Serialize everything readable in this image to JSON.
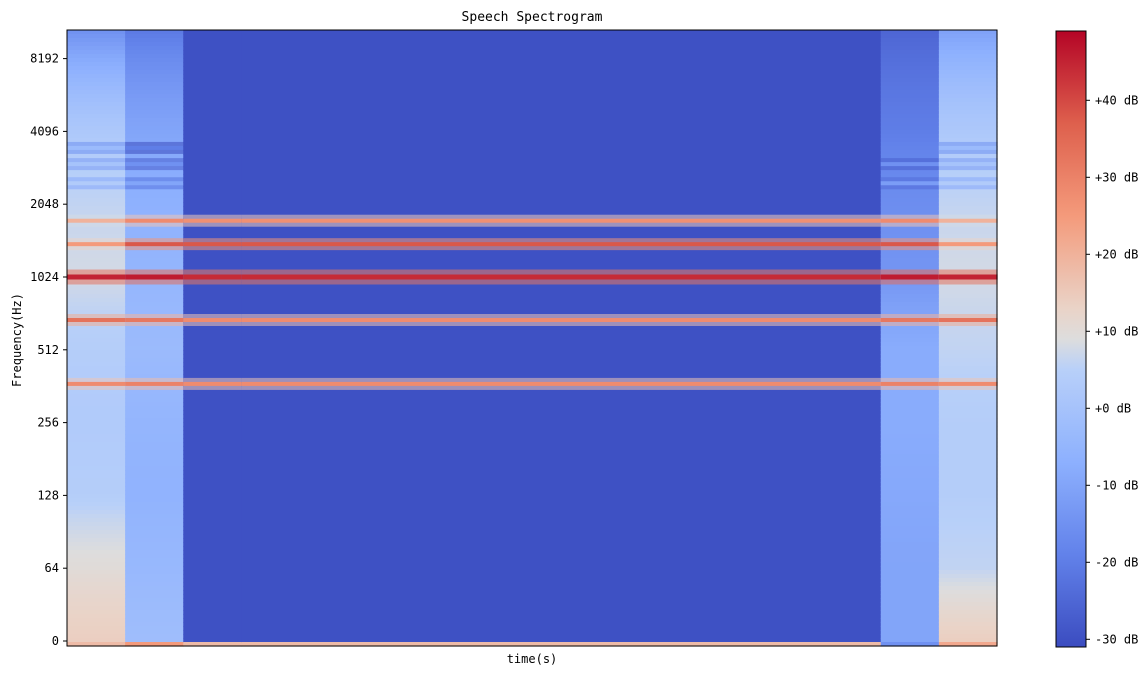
{
  "chart_data": {
    "type": "heatmap",
    "title": "Speech Spectrogram",
    "xlabel": "time(s)",
    "ylabel": "Frequency(Hz)",
    "y_scale": "log2 (symlog near 0)",
    "y_ticks": [
      "0",
      "64",
      "128",
      "256",
      "512",
      "1024",
      "2048",
      "4096",
      "8192"
    ],
    "colorbar": {
      "colormap": "coolwarm",
      "range_db": [
        -31,
        49
      ],
      "ticks": [
        -30,
        -20,
        -10,
        0,
        10,
        20,
        30,
        40
      ],
      "tick_labels": [
        "-30 dB",
        "-20 dB",
        "-10 dB",
        "+0 dB",
        "+10 dB",
        "+20 dB",
        "+30 dB",
        "+40 dB"
      ]
    },
    "frames": [
      {
        "floor_db": [
          18,
          14,
          10,
          4,
          3,
          4,
          8,
          2,
          -30
        ],
        "harmonics": [
          {
            "f": 370,
            "db": 28
          },
          {
            "f": 680,
            "db": 33
          },
          {
            "f": 1024,
            "db": 45
          },
          {
            "f": 1400,
            "db": 25
          },
          {
            "f": 1750,
            "db": 20
          },
          {
            "f": 2500,
            "db": 3
          },
          {
            "f": 3000,
            "db": 0
          },
          {
            "f": 3500,
            "db": -3
          }
        ]
      },
      {
        "floor_db": [
          25,
          -2,
          -4,
          -6,
          -5,
          -3,
          -5,
          -10,
          -30
        ],
        "harmonics": [
          {
            "f": 370,
            "db": 30
          },
          {
            "f": 680,
            "db": 32
          },
          {
            "f": 1024,
            "db": 46
          },
          {
            "f": 1400,
            "db": 38
          },
          {
            "f": 1750,
            "db": 28
          },
          {
            "f": 2500,
            "db": -10
          },
          {
            "f": 3000,
            "db": -15
          },
          {
            "f": 3500,
            "db": -20
          }
        ]
      },
      {
        "floor_db": [
          18,
          -30,
          -30,
          -30,
          -30,
          -30,
          -30,
          -30,
          -30
        ],
        "harmonics": [
          {
            "f": 370,
            "db": 28
          },
          {
            "f": 680,
            "db": 28
          },
          {
            "f": 1024,
            "db": 44
          },
          {
            "f": 1400,
            "db": 38
          },
          {
            "f": 1750,
            "db": 27
          }
        ]
      },
      {
        "floor_db": [
          18,
          -30,
          -30,
          -30,
          -30,
          -30,
          -30,
          -30,
          -30
        ],
        "harmonics": [
          {
            "f": 370,
            "db": 28
          },
          {
            "f": 680,
            "db": 28
          },
          {
            "f": 1024,
            "db": 44
          },
          {
            "f": 1400,
            "db": 38
          },
          {
            "f": 1750,
            "db": 27
          }
        ]
      },
      {
        "floor_db": [
          -15,
          -10,
          -10,
          -9,
          -8,
          -8,
          -14,
          -20,
          -30
        ],
        "harmonics": [
          {
            "f": 370,
            "db": 30
          },
          {
            "f": 680,
            "db": 32
          },
          {
            "f": 1024,
            "db": 46
          },
          {
            "f": 1400,
            "db": 38
          },
          {
            "f": 1750,
            "db": 28
          },
          {
            "f": 2500,
            "db": -12
          },
          {
            "f": 3000,
            "db": -15
          }
        ]
      },
      {
        "floor_db": [
          22,
          14,
          6,
          4,
          4,
          6,
          8,
          2,
          -22
        ],
        "harmonics": [
          {
            "f": 370,
            "db": 28
          },
          {
            "f": 680,
            "db": 33
          },
          {
            "f": 1024,
            "db": 45
          },
          {
            "f": 1400,
            "db": 25
          },
          {
            "f": 1750,
            "db": 20
          },
          {
            "f": 2500,
            "db": 3
          },
          {
            "f": 3000,
            "db": 0
          },
          {
            "f": 3500,
            "db": -3
          }
        ]
      }
    ],
    "frame_span_units": [
      1,
      1,
      1,
      11,
      1,
      1
    ],
    "floor_freqs_hz": [
      0,
      32,
      64,
      128,
      256,
      512,
      1024,
      4096,
      16384
    ]
  }
}
